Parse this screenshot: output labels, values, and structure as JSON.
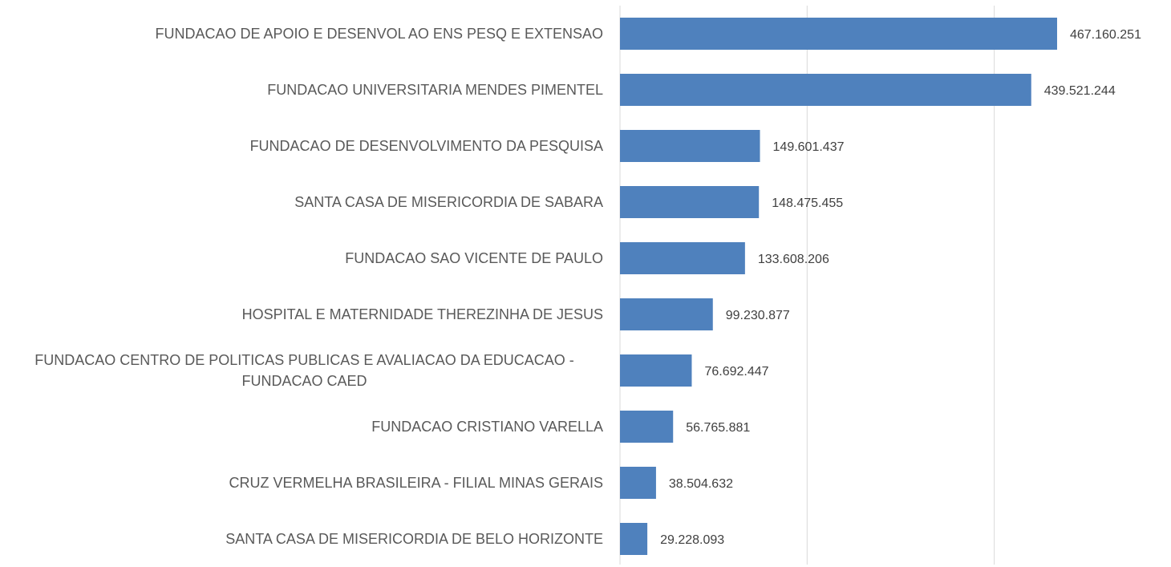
{
  "chart_data": {
    "type": "barh",
    "categories": [
      "FUNDACAO DE APOIO E DESENVOL AO ENS PESQ E EXTENSAO",
      "FUNDACAO UNIVERSITARIA MENDES PIMENTEL",
      "FUNDACAO DE DESENVOLVIMENTO DA PESQUISA",
      "SANTA CASA DE MISERICORDIA DE SABARA",
      "FUNDACAO SAO VICENTE DE PAULO",
      "HOSPITAL E MATERNIDADE THEREZINHA DE JESUS",
      "FUNDACAO CENTRO DE POLITICAS PUBLICAS E AVALIACAO DA EDUCACAO - FUNDACAO CAED",
      "FUNDACAO CRISTIANO VARELLA",
      "CRUZ VERMELHA BRASILEIRA - FILIAL MINAS GERAIS",
      "SANTA CASA DE MISERICORDIA DE BELO HORIZONTE"
    ],
    "values": [
      467160251,
      439521244,
      149601437,
      148475455,
      133608206,
      99230877,
      76692447,
      56765881,
      38504632,
      29228093
    ],
    "value_labels": [
      "467.160.251",
      "439.521.244",
      "149.601.437",
      "148.475.455",
      "133.608.206",
      "99.230.877",
      "76.692.447",
      "56.765.881",
      "38.504.632",
      "29.228.093"
    ],
    "color": "#4f81bd",
    "xlim": [
      0,
      500000000
    ],
    "xticks": [
      0,
      200000000,
      400000000
    ],
    "grid": true
  }
}
